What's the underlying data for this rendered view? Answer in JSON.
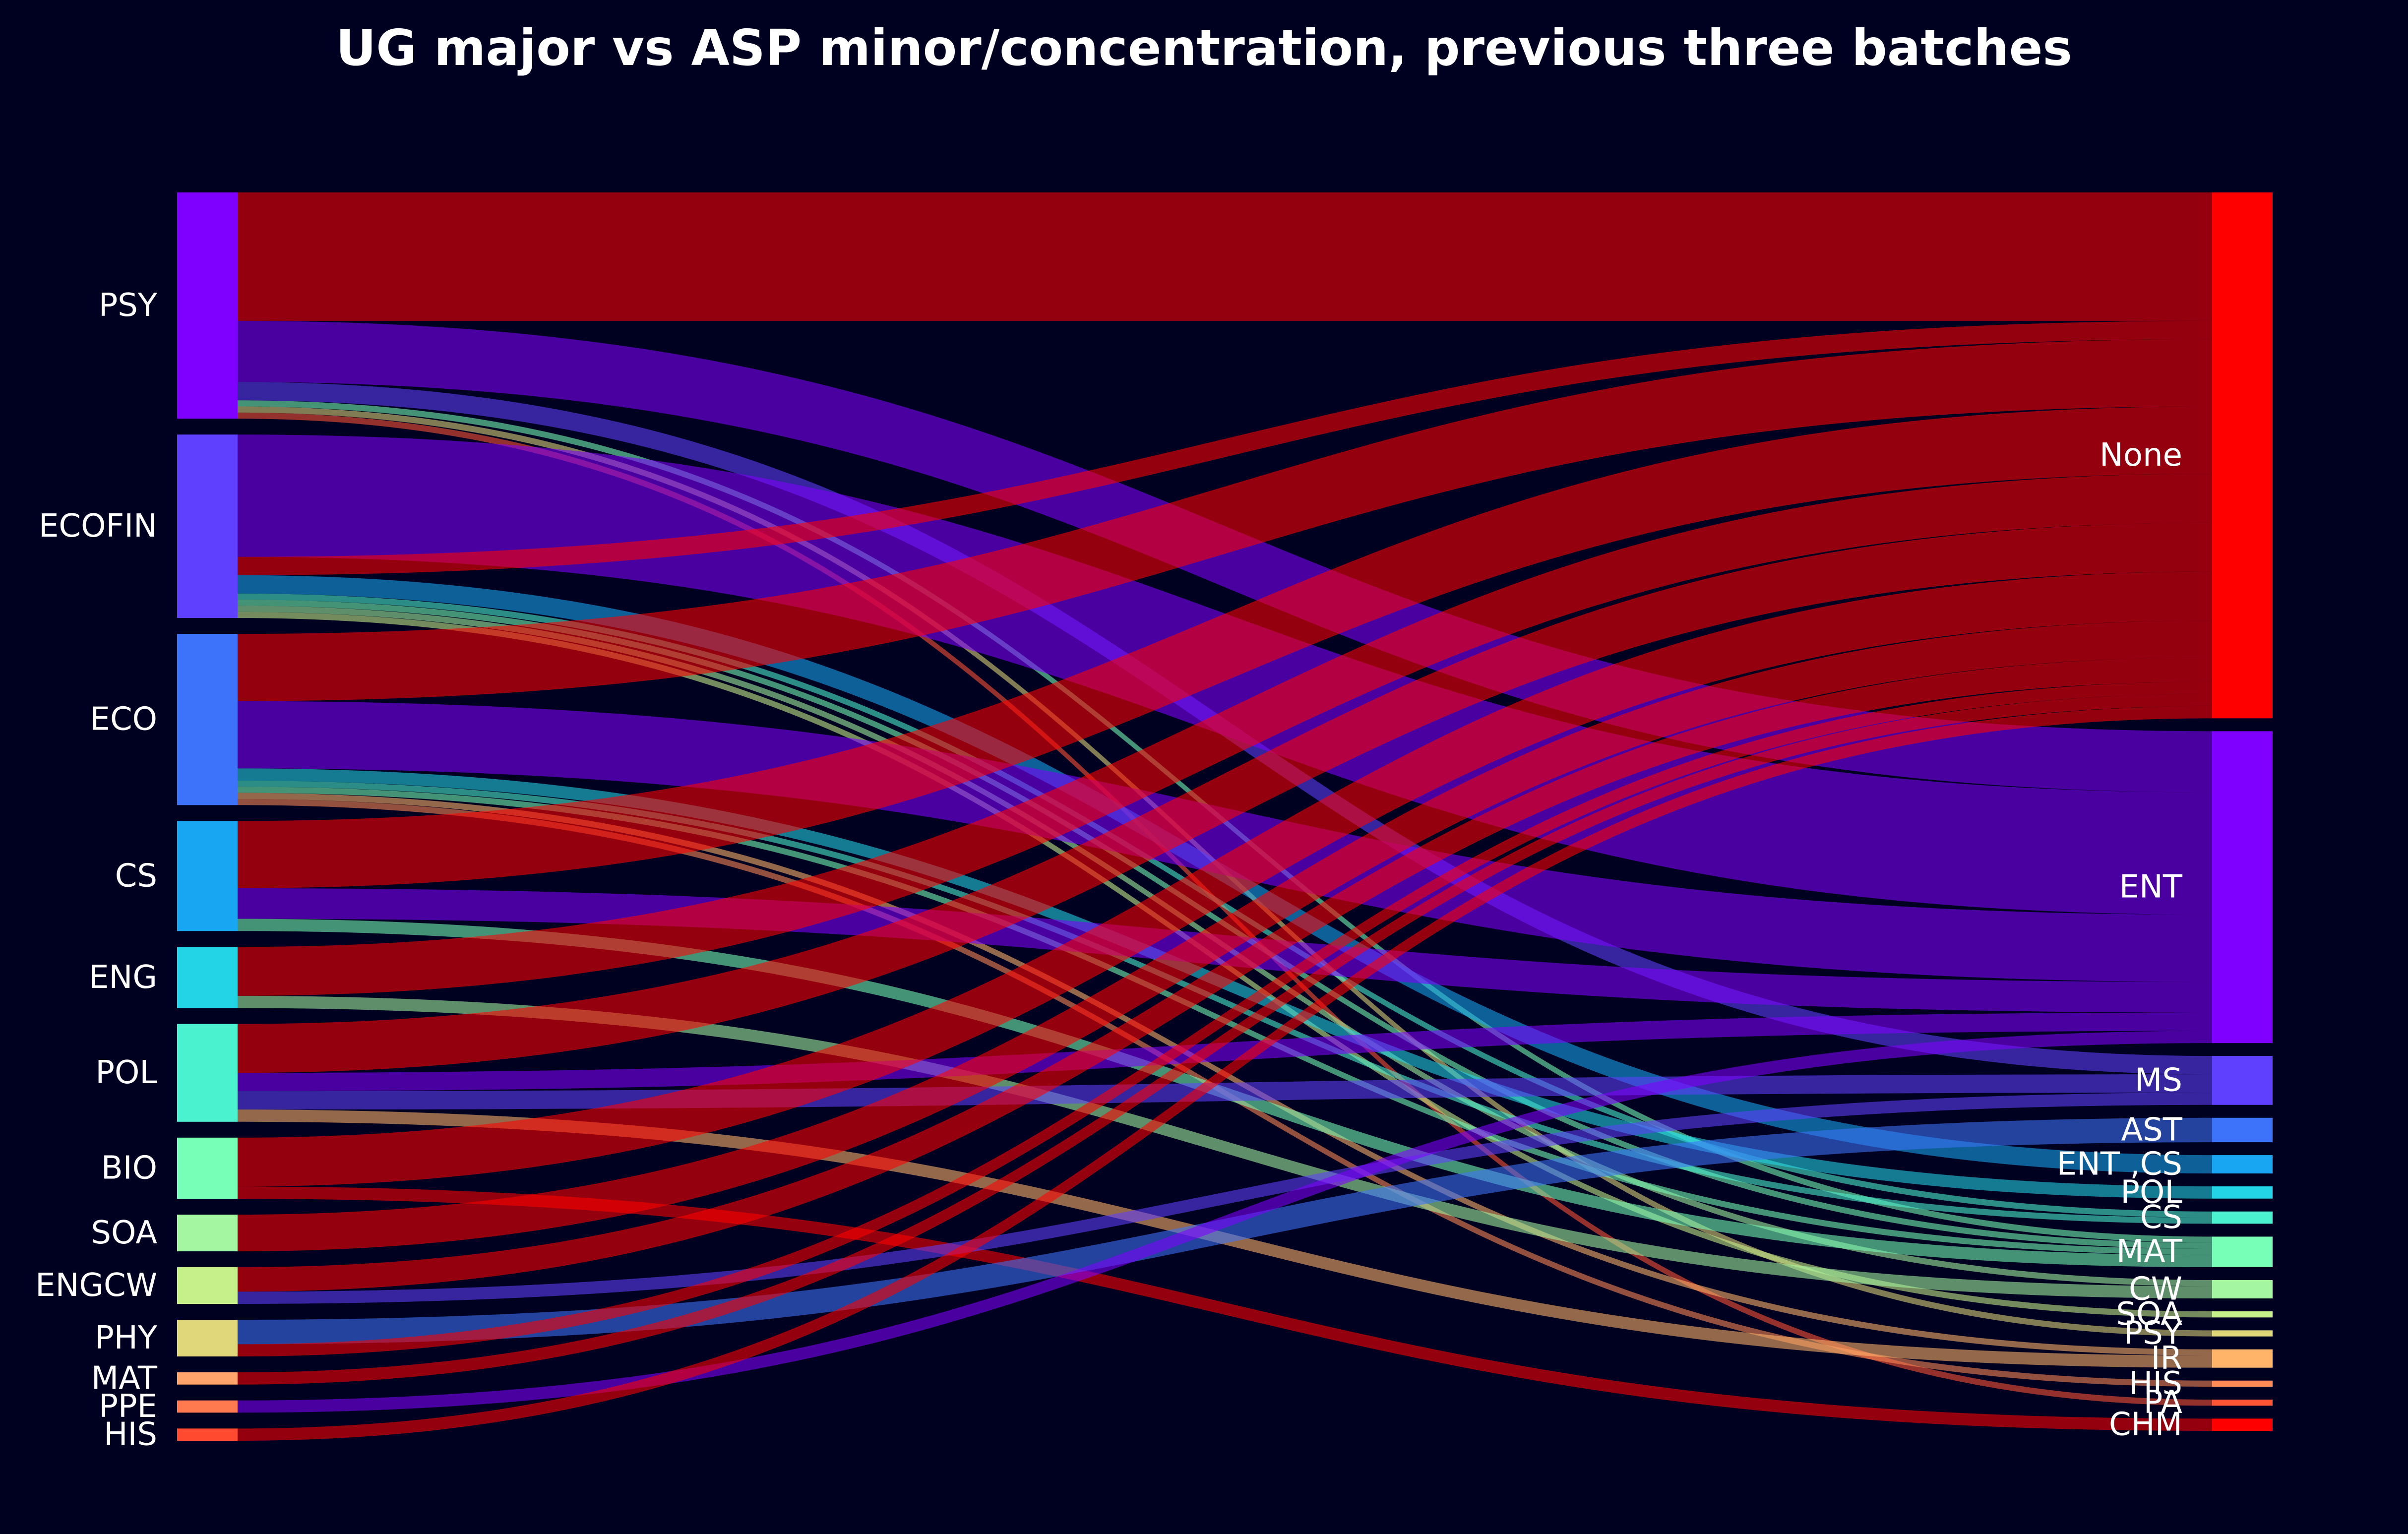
{
  "chart_data": {
    "type": "sankey",
    "title": "UG major vs ASP minor/concentration, previous three batches",
    "left_nodes": [
      {
        "name": "PSY",
        "color": "#8000ff"
      },
      {
        "name": "ECOFIN",
        "color": "#5e40fe"
      },
      {
        "name": "ECO",
        "color": "#3c73fa"
      },
      {
        "name": "CS",
        "color": "#18a5f1"
      },
      {
        "name": "ENG",
        "color": "#22d4e5"
      },
      {
        "name": "POL",
        "color": "#4bf2d0"
      },
      {
        "name": "BIO",
        "color": "#77feb7"
      },
      {
        "name": "SOA",
        "color": "#a4f7a0"
      },
      {
        "name": "ENGCW",
        "color": "#c6f08a"
      },
      {
        "name": "PHY",
        "color": "#e0d67a"
      },
      {
        "name": "MAT",
        "color": "#ffa46a"
      },
      {
        "name": "PPE",
        "color": "#ff7a4e"
      },
      {
        "name": "HIS",
        "color": "#ff4a30"
      }
    ],
    "right_nodes": [
      {
        "name": "None",
        "color": "#ff0000"
      },
      {
        "name": "ENT",
        "color": "#8000ff"
      },
      {
        "name": "MS",
        "color": "#5e40fe"
      },
      {
        "name": "AST",
        "color": "#3c73fa"
      },
      {
        "name": "ENT ,CS",
        "color": "#18a5f1"
      },
      {
        "name": "POL",
        "color": "#22d4e5"
      },
      {
        "name": "CS",
        "color": "#4bf2d0"
      },
      {
        "name": "MAT",
        "color": "#77feb7"
      },
      {
        "name": "CW",
        "color": "#a4f7a0"
      },
      {
        "name": "SOA",
        "color": "#c6f08a"
      },
      {
        "name": "PSY",
        "color": "#e0d67a"
      },
      {
        "name": "IR",
        "color": "#ffb46a"
      },
      {
        "name": "HIS",
        "color": "#ff8a55"
      },
      {
        "name": "PA",
        "color": "#ff5535"
      },
      {
        "name": "CHM",
        "color": "#ff0000"
      }
    ],
    "links": [
      {
        "source": "PSY",
        "target": "None",
        "value": 21
      },
      {
        "source": "PSY",
        "target": "ENT",
        "value": 10
      },
      {
        "source": "PSY",
        "target": "MS",
        "value": 3
      },
      {
        "source": "PSY",
        "target": "MAT",
        "value": 1
      },
      {
        "source": "PSY",
        "target": "PSY",
        "value": 1
      },
      {
        "source": "PSY",
        "target": "PA",
        "value": 1
      },
      {
        "source": "ECOFIN",
        "target": "ENT",
        "value": 20
      },
      {
        "source": "ECOFIN",
        "target": "None",
        "value": 3
      },
      {
        "source": "ECOFIN",
        "target": "ENT ,CS",
        "value": 3
      },
      {
        "source": "ECOFIN",
        "target": "CS",
        "value": 1
      },
      {
        "source": "ECOFIN",
        "target": "MAT",
        "value": 1
      },
      {
        "source": "ECOFIN",
        "target": "CW",
        "value": 1
      },
      {
        "source": "ECOFIN",
        "target": "SOA",
        "value": 1
      },
      {
        "source": "ECO",
        "target": "None",
        "value": 11
      },
      {
        "source": "ECO",
        "target": "ENT",
        "value": 11
      },
      {
        "source": "ECO",
        "target": "POL",
        "value": 2
      },
      {
        "source": "ECO",
        "target": "CS",
        "value": 1
      },
      {
        "source": "ECO",
        "target": "MAT",
        "value": 1
      },
      {
        "source": "ECO",
        "target": "IR",
        "value": 1
      },
      {
        "source": "ECO",
        "target": "HIS",
        "value": 1
      },
      {
        "source": "CS",
        "target": "None",
        "value": 11
      },
      {
        "source": "CS",
        "target": "ENT",
        "value": 5
      },
      {
        "source": "CS",
        "target": "MAT",
        "value": 2
      },
      {
        "source": "ENG",
        "target": "None",
        "value": 8
      },
      {
        "source": "ENG",
        "target": "CW",
        "value": 2
      },
      {
        "source": "POL",
        "target": "None",
        "value": 8
      },
      {
        "source": "POL",
        "target": "ENT",
        "value": 3
      },
      {
        "source": "POL",
        "target": "MS",
        "value": 3
      },
      {
        "source": "POL",
        "target": "IR",
        "value": 2
      },
      {
        "source": "BIO",
        "target": "None",
        "value": 8
      },
      {
        "source": "BIO",
        "target": "CHM",
        "value": 2
      },
      {
        "source": "SOA",
        "target": "None",
        "value": 6
      },
      {
        "source": "ENGCW",
        "target": "None",
        "value": 4
      },
      {
        "source": "ENGCW",
        "target": "MS",
        "value": 2
      },
      {
        "source": "PHY",
        "target": "AST",
        "value": 4
      },
      {
        "source": "PHY",
        "target": "None",
        "value": 2
      },
      {
        "source": "MAT",
        "target": "None",
        "value": 2
      },
      {
        "source": "PPE",
        "target": "ENT",
        "value": 2
      },
      {
        "source": "HIS",
        "target": "None",
        "value": 2
      }
    ]
  }
}
